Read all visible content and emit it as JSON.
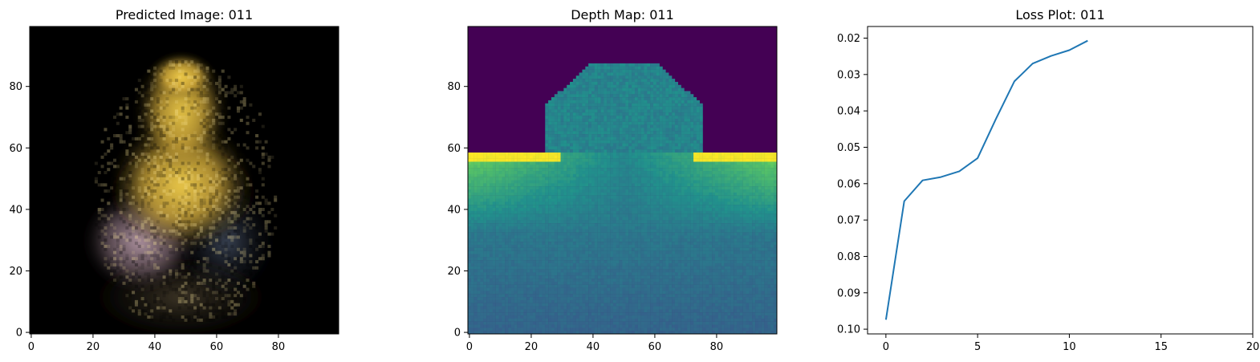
{
  "chart_data": [
    {
      "type": "heatmap",
      "title": "Predicted Image: 011",
      "xlim": [
        -0.5,
        99.5
      ],
      "ylim": [
        99.5,
        -0.5
      ],
      "xticks": [
        0,
        20,
        40,
        60,
        80
      ],
      "yticks": [
        0,
        20,
        40,
        60,
        80
      ],
      "xticklabels": [
        "0",
        "20",
        "40",
        "60",
        "80"
      ],
      "yticklabels": [
        "0",
        "20",
        "40",
        "60",
        "80"
      ],
      "grid": false
    },
    {
      "type": "heatmap",
      "title": "Depth Map: 011",
      "colormap": "viridis",
      "xlim": [
        -0.5,
        99.5
      ],
      "ylim": [
        99.5,
        -0.5
      ],
      "xticks": [
        0,
        20,
        40,
        60,
        80
      ],
      "yticks": [
        0,
        20,
        40,
        60,
        80
      ],
      "xticklabels": [
        "0",
        "20",
        "40",
        "60",
        "80"
      ],
      "yticklabels": [
        "0",
        "20",
        "40",
        "60",
        "80"
      ],
      "grid": false
    },
    {
      "type": "line",
      "title": "Loss Plot: 011",
      "x": [
        0,
        1,
        2,
        3,
        4,
        5,
        6,
        7,
        8,
        9,
        10,
        11
      ],
      "series": [
        {
          "values": [
            0.0974,
            0.0648,
            0.0591,
            0.0582,
            0.0566,
            0.053,
            0.0422,
            0.0319,
            0.027,
            0.0249,
            0.0233,
            0.0207
          ],
          "color": "#1f77b4"
        }
      ],
      "xlim": [
        -1.0,
        20.0
      ],
      "ylim": [
        0.0168,
        0.1013
      ],
      "xticks": [
        0,
        5,
        10,
        15,
        20
      ],
      "xticklabels": [
        "0",
        "5",
        "10",
        "15",
        "20"
      ],
      "yticks": [
        0.02,
        0.03,
        0.04,
        0.05,
        0.06,
        0.07,
        0.08,
        0.09,
        0.1
      ],
      "yticklabels": [
        "0.02",
        "0.03",
        "0.04",
        "0.05",
        "0.06",
        "0.07",
        "0.08",
        "0.09",
        "0.10"
      ],
      "grid": false,
      "legend": "none"
    }
  ]
}
